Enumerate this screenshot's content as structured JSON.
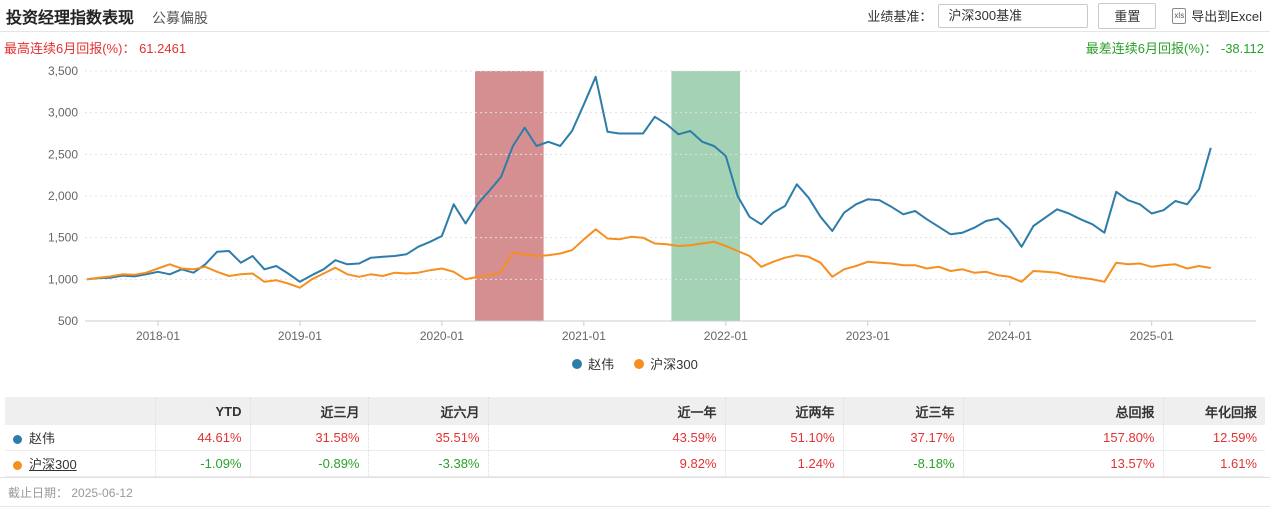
{
  "header": {
    "title": "投资经理指数表现",
    "subtitle": "公募偏股",
    "benchmark_label": "业绩基准：",
    "benchmark_value": "沪深300基准",
    "reset_label": "重置",
    "xls_badge": "xls",
    "export_label": "导出到Excel"
  },
  "stats": {
    "best": {
      "label": "最高连续6月回报(%)：",
      "value": "61.2461"
    },
    "worst": {
      "label": "最差连续6月回报(%)：",
      "value": "-38.112"
    }
  },
  "colors": {
    "line_blue": "#2d7ca9",
    "line_orange": "#f78f20",
    "band_red": "#d68f90",
    "band_green": "#a3d3b4",
    "positive_text": "#e23333",
    "negative_text": "#2aa12a"
  },
  "legend": [
    {
      "name": "赵伟",
      "color": "#2d7ca9"
    },
    {
      "name": "沪深300",
      "color": "#f78f20"
    }
  ],
  "chart_data": {
    "type": "line",
    "title": "",
    "x_start": "2017-07",
    "x_interval": "monthly",
    "ylim": [
      500,
      3500
    ],
    "grid": "dashed-horizontal",
    "legend_position": "bottom-center",
    "y_ticks": [
      {
        "value": 500,
        "label": "500"
      },
      {
        "value": 1000,
        "label": "1,000"
      },
      {
        "value": 1500,
        "label": "1,500"
      },
      {
        "value": 2000,
        "label": "2,000"
      },
      {
        "value": 2500,
        "label": "2,500"
      },
      {
        "value": 3000,
        "label": "3,000"
      },
      {
        "value": 3500,
        "label": "3,500"
      }
    ],
    "x_ticks": [
      {
        "label": "2018-01",
        "month_index": 6
      },
      {
        "label": "2019-01",
        "month_index": 18
      },
      {
        "label": "2020-01",
        "month_index": 30
      },
      {
        "label": "2021-01",
        "month_index": 42
      },
      {
        "label": "2022-01",
        "month_index": 54
      },
      {
        "label": "2023-01",
        "month_index": 66
      },
      {
        "label": "2024-01",
        "month_index": 78
      },
      {
        "label": "2025-01",
        "month_index": 90
      }
    ],
    "bands": [
      {
        "name": "best-6m-window-band",
        "color": "#d68f90",
        "from_month_index": 32.8,
        "to_month_index": 38.6
      },
      {
        "name": "worst-6m-window-band",
        "color": "#a3d3b4",
        "from_month_index": 49.4,
        "to_month_index": 55.2
      }
    ],
    "series": [
      {
        "name": "赵伟",
        "color": "#2d7ca9",
        "values": [
          1000,
          1015,
          1020,
          1045,
          1035,
          1060,
          1090,
          1060,
          1120,
          1080,
          1180,
          1330,
          1340,
          1200,
          1280,
          1120,
          1160,
          1070,
          970,
          1050,
          1120,
          1230,
          1180,
          1190,
          1260,
          1270,
          1280,
          1300,
          1390,
          1450,
          1520,
          1900,
          1670,
          1900,
          2060,
          2230,
          2600,
          2820,
          2600,
          2650,
          2600,
          2780,
          3100,
          3430,
          2770,
          2750,
          2750,
          2750,
          2950,
          2860,
          2740,
          2780,
          2650,
          2600,
          2480,
          2000,
          1750,
          1660,
          1800,
          1880,
          2140,
          1980,
          1750,
          1580,
          1800,
          1900,
          1960,
          1950,
          1870,
          1780,
          1820,
          1720,
          1630,
          1540,
          1560,
          1620,
          1700,
          1730,
          1600,
          1390,
          1640,
          1740,
          1840,
          1790,
          1720,
          1660,
          1560,
          2050,
          1950,
          1900,
          1790,
          1830,
          1940,
          1900,
          2080,
          2578
        ]
      },
      {
        "name": "沪深300",
        "color": "#f78f20",
        "values": [
          1000,
          1020,
          1035,
          1060,
          1055,
          1080,
          1130,
          1180,
          1130,
          1120,
          1150,
          1090,
          1040,
          1060,
          1070,
          970,
          990,
          950,
          900,
          1000,
          1070,
          1140,
          1060,
          1030,
          1060,
          1040,
          1080,
          1070,
          1080,
          1110,
          1130,
          1090,
          1000,
          1030,
          1050,
          1090,
          1320,
          1300,
          1280,
          1290,
          1310,
          1350,
          1480,
          1600,
          1490,
          1480,
          1510,
          1500,
          1430,
          1420,
          1400,
          1410,
          1430,
          1450,
          1400,
          1340,
          1280,
          1150,
          1210,
          1260,
          1290,
          1270,
          1200,
          1030,
          1120,
          1160,
          1210,
          1200,
          1190,
          1170,
          1170,
          1130,
          1150,
          1100,
          1120,
          1080,
          1090,
          1050,
          1030,
          970,
          1100,
          1090,
          1080,
          1040,
          1020,
          1000,
          970,
          1200,
          1180,
          1190,
          1150,
          1170,
          1180,
          1130,
          1160,
          1136
        ]
      }
    ]
  },
  "table": {
    "headers": [
      "",
      "YTD",
      "近三月",
      "近六月",
      "近一年",
      "近两年",
      "近三年",
      "总回报",
      "年化回报"
    ],
    "rows": [
      {
        "name": "赵伟",
        "dot_color": "#2d7ca9",
        "link": false,
        "values": [
          "44.61%",
          "31.58%",
          "35.51%",
          "43.59%",
          "51.10%",
          "37.17%",
          "157.80%",
          "12.59%"
        ]
      },
      {
        "name": "沪深300",
        "dot_color": "#f78f20",
        "link": true,
        "values": [
          "-1.09%",
          "-0.89%",
          "-3.38%",
          "9.82%",
          "1.24%",
          "-8.18%",
          "13.57%",
          "1.61%"
        ]
      }
    ]
  },
  "footer": {
    "label": "截止日期：",
    "value": "2025-06-12"
  }
}
